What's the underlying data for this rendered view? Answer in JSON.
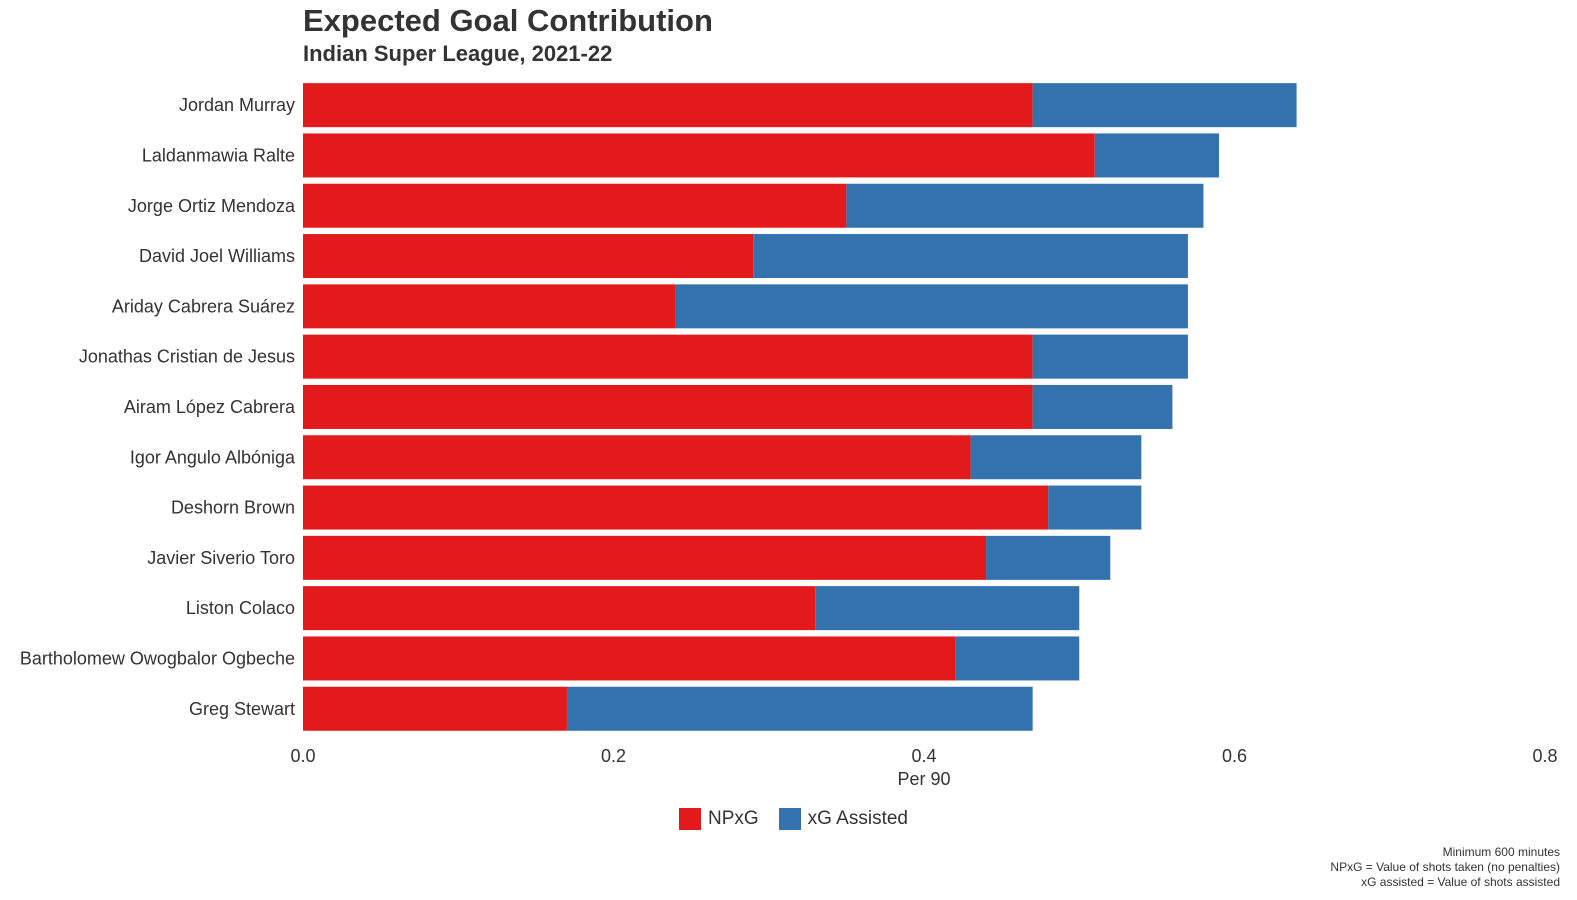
{
  "chart_data": {
    "type": "bar",
    "orientation": "horizontal",
    "stacked": true,
    "title": "Expected Goal Contribution",
    "subtitle": "Indian Super League, 2021-22",
    "xlabel": "Per 90",
    "ylabel": "",
    "xlim": [
      0,
      0.8
    ],
    "xticks": [
      "0.0",
      "0.2",
      "0.4",
      "0.6",
      "0.8"
    ],
    "xtick_values": [
      0,
      0.2,
      0.4,
      0.6,
      0.8
    ],
    "categories": [
      "Jordan Murray",
      "Laldanmawia Ralte",
      "Jorge Ortiz Mendoza",
      "David Joel Williams",
      "Ariday Cabrera Suárez",
      "Jonathas Cristian de Jesus",
      "Airam López Cabrera",
      "Igor Angulo Albóniga",
      "Deshorn Brown",
      "Javier Siverio Toro",
      "Liston Colaco",
      "Bartholomew Owogbalor Ogbeche",
      "Greg Stewart"
    ],
    "series": [
      {
        "name": "NPxG",
        "color": "#e31a1c",
        "values": [
          0.47,
          0.51,
          0.35,
          0.29,
          0.24,
          0.47,
          0.47,
          0.43,
          0.48,
          0.44,
          0.33,
          0.42,
          0.17
        ]
      },
      {
        "name": "xG Assisted",
        "color": "#3372ad",
        "values": [
          0.17,
          0.08,
          0.23,
          0.28,
          0.33,
          0.1,
          0.09,
          0.11,
          0.06,
          0.08,
          0.17,
          0.08,
          0.3
        ]
      }
    ],
    "grid": false,
    "legend_position": "bottom",
    "caption": [
      "Minimum 600 minutes",
      "NPxG = Value of shots taken (no penalties)",
      "xG assisted = Value of shots assisted"
    ]
  }
}
